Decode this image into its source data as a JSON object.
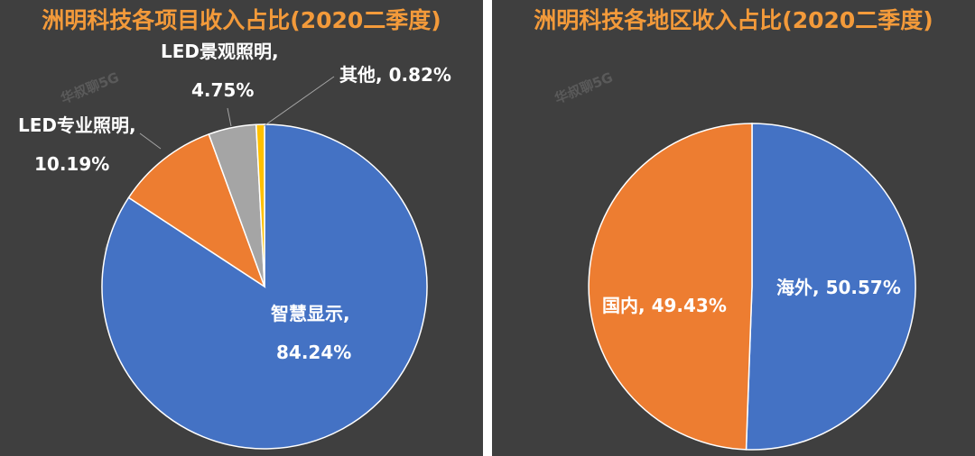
{
  "charts": [
    {
      "title": "洲明科技各项目收入占比(2020二季度)",
      "slices": [
        {
          "name": "智慧显示",
          "pct_label": "84.24%",
          "value": 84.24,
          "color": "#4472c4"
        },
        {
          "name": "LED专业照明",
          "pct_label": "10.19%",
          "value": 10.19,
          "color": "#ed7d31"
        },
        {
          "name": "LED景观照明",
          "pct_label": "4.75%",
          "value": 4.75,
          "color": "#a5a5a5"
        },
        {
          "name": "其他",
          "pct_label": "0.82%",
          "value": 0.82,
          "color": "#ffc000"
        }
      ]
    },
    {
      "title": "洲明科技各地区收入占比(2020二季度)",
      "slices": [
        {
          "name": "海外",
          "pct_label": "50.57%",
          "value": 50.57,
          "color": "#4472c4"
        },
        {
          "name": "国内",
          "pct_label": "49.43%",
          "value": 49.43,
          "color": "#ed7d31"
        }
      ]
    }
  ],
  "watermark": "华叔聊5G",
  "chart_data": [
    {
      "type": "pie",
      "title": "洲明科技各项目收入占比(2020二季度)",
      "categories": [
        "智慧显示",
        "LED专业照明",
        "LED景观照明",
        "其他"
      ],
      "values": [
        84.24,
        10.19,
        4.75,
        0.82
      ],
      "unit": "%",
      "grid": false,
      "legend": "none"
    },
    {
      "type": "pie",
      "title": "洲明科技各地区收入占比(2020二季度)",
      "categories": [
        "海外",
        "国内"
      ],
      "values": [
        50.57,
        49.43
      ],
      "unit": "%",
      "grid": false,
      "legend": "none"
    }
  ]
}
